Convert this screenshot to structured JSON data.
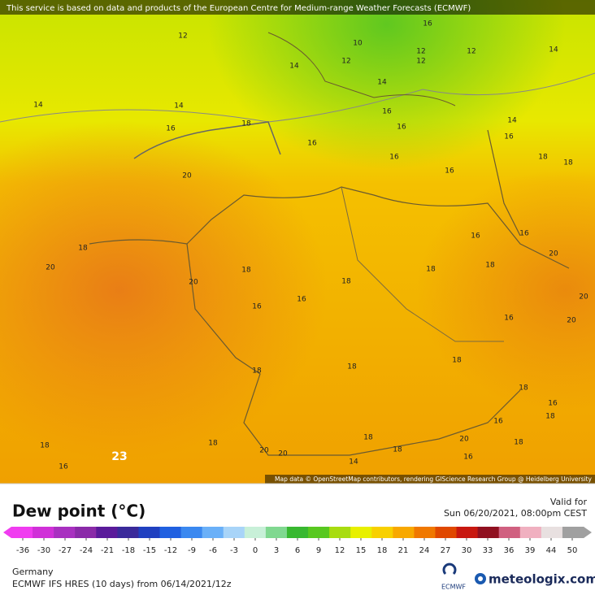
{
  "header": {
    "notice": "This service is based on data and products of the European Centre for Medium-range Weather Forecasts (ECMWF)"
  },
  "map": {
    "contour_labels": [
      "12",
      "10",
      "16",
      "12",
      "12",
      "12",
      "12",
      "14",
      "14",
      "14",
      "14",
      "14",
      "16",
      "16",
      "18",
      "16",
      "14",
      "16",
      "16",
      "16",
      "18",
      "18",
      "16",
      "20",
      "16",
      "16",
      "18",
      "20",
      "20",
      "18",
      "18",
      "18",
      "18",
      "20",
      "20",
      "16",
      "16",
      "16",
      "20",
      "18",
      "18",
      "18",
      "18",
      "16",
      "16",
      "18",
      "18",
      "20",
      "18",
      "18",
      "18",
      "18",
      "20",
      "20",
      "16",
      "16",
      "14",
      "23"
    ],
    "attribution": "Map data © OpenStreetMap contributors, rendering GIScience Research Group @ Heidelberg University"
  },
  "legend": {
    "title": "Dew point (°C)",
    "valid_label": "Valid for",
    "valid_time": "Sun 06/20/2021, 08:00pm CEST",
    "ticks": [
      -36,
      -30,
      -27,
      -24,
      -21,
      -18,
      -15,
      -12,
      -9,
      -6,
      -3,
      0,
      3,
      6,
      9,
      12,
      15,
      18,
      21,
      24,
      27,
      30,
      33,
      36,
      39,
      44,
      50
    ],
    "colors": [
      "#f03cf0",
      "#d030d8",
      "#a830c0",
      "#8a2aa8",
      "#5a1a9a",
      "#3a2a9a",
      "#2040c0",
      "#2060e0",
      "#3a88f0",
      "#6ab0f8",
      "#a8d4f8",
      "#c8f0d8",
      "#80d890",
      "#38b830",
      "#58c820",
      "#a8dc10",
      "#e8f000",
      "#f8d000",
      "#f8a800",
      "#f07800",
      "#e04800",
      "#c81810",
      "#901020",
      "#d06080",
      "#f0b0c0",
      "#e8e0e0",
      "#a0a0a0"
    ]
  },
  "footer": {
    "region": "Germany",
    "model": "ECMWF IFS HRES (10 days) from 06/14/2021/12z",
    "logo_small": "ECMWF",
    "brand": "meteologix.com"
  }
}
